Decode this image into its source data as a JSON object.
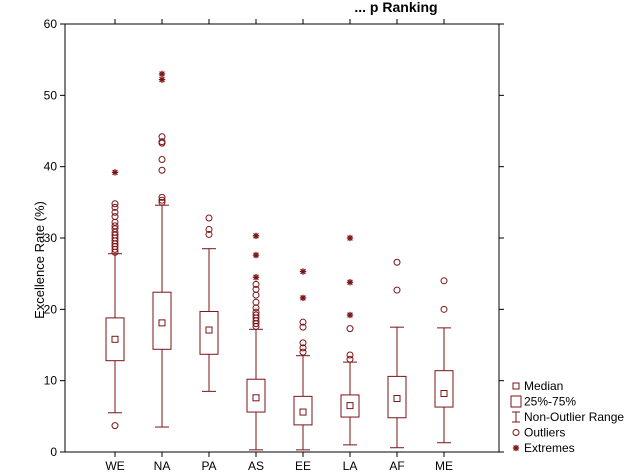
{
  "chart_data": {
    "type": "boxplot",
    "title": "... p Ranking",
    "xlabel": "",
    "ylabel": "Excellence Rate (%)",
    "ylim": [
      0,
      60
    ],
    "yticks": [
      0,
      10,
      20,
      30,
      40,
      50,
      60
    ],
    "grid": false,
    "legend_position": "right",
    "colors": {
      "series": "#7b1416",
      "frame": "#000000",
      "background": "#ffffff"
    },
    "categories": [
      "WE",
      "NA",
      "PA",
      "AS",
      "EE",
      "LA",
      "AF",
      "ME"
    ],
    "boxes": [
      {
        "median": 15.8,
        "q1": 12.8,
        "q3": 18.8,
        "whisker_low": 5.5,
        "whisker_high": 27.8,
        "outliers": [
          3.7,
          28.0,
          28.4,
          28.8,
          29.2,
          29.6,
          30.0,
          30.4,
          30.8,
          31.3,
          31.7,
          32.2,
          33.0,
          33.6,
          34.3,
          34.8
        ],
        "extremes": [
          39.2
        ]
      },
      {
        "median": 18.1,
        "q1": 14.4,
        "q3": 22.4,
        "whisker_low": 3.5,
        "whisker_high": 34.6,
        "outliers": [
          35.0,
          35.3,
          35.7,
          39.5,
          41.0,
          43.3,
          43.5,
          44.2
        ],
        "extremes": [
          52.2,
          53.0
        ]
      },
      {
        "median": 17.1,
        "q1": 13.7,
        "q3": 19.7,
        "whisker_low": 8.5,
        "whisker_high": 28.5,
        "outliers": [
          30.5,
          31.2,
          32.8
        ],
        "extremes": []
      },
      {
        "median": 7.6,
        "q1": 5.6,
        "q3": 10.2,
        "whisker_low": 0.3,
        "whisker_high": 17.2,
        "outliers": [
          17.6,
          18.0,
          18.4,
          18.8,
          19.2,
          19.6,
          20.2,
          21.0,
          22.0,
          22.8,
          23.5
        ],
        "extremes": [
          24.5,
          27.6,
          30.3
        ]
      },
      {
        "median": 5.6,
        "q1": 3.8,
        "q3": 7.8,
        "whisker_low": 0.3,
        "whisker_high": 13.5,
        "outliers": [
          14.0,
          14.6,
          15.3,
          17.5,
          18.2
        ],
        "extremes": [
          21.6,
          25.3
        ]
      },
      {
        "median": 6.5,
        "q1": 4.9,
        "q3": 8.0,
        "whisker_low": 1.0,
        "whisker_high": 12.6,
        "outliers": [
          13.0,
          13.6,
          17.3
        ],
        "extremes": [
          19.2,
          23.8,
          30.0
        ]
      },
      {
        "median": 7.5,
        "q1": 4.8,
        "q3": 10.6,
        "whisker_low": 0.6,
        "whisker_high": 17.5,
        "outliers": [
          22.7,
          26.6
        ],
        "extremes": []
      },
      {
        "median": 8.2,
        "q1": 6.3,
        "q3": 11.4,
        "whisker_low": 1.3,
        "whisker_high": 17.4,
        "outliers": [
          20.0,
          24.0
        ],
        "extremes": []
      }
    ],
    "legend": [
      {
        "symbol": "median",
        "label": "Median"
      },
      {
        "symbol": "box",
        "label": "25%-75%"
      },
      {
        "symbol": "whisker",
        "label": "Non-Outlier Range"
      },
      {
        "symbol": "outlier",
        "label": "Outliers"
      },
      {
        "symbol": "extreme",
        "label": "Extremes"
      }
    ]
  }
}
